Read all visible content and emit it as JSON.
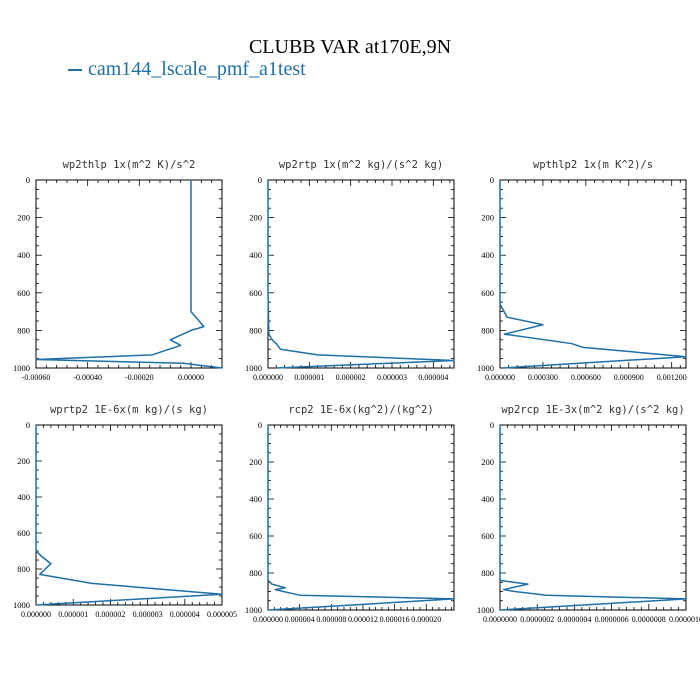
{
  "title": "CLUBB VAR at170E,9N",
  "legend": {
    "label": "cam144_lscale_pmf_a1test",
    "color": "#1f6fa8"
  },
  "chart_data": [
    {
      "type": "line",
      "title": "wp2thlp  1x(m^2 K)/s^2",
      "y_reversed": true,
      "ylim": [
        0,
        1000
      ],
      "yticks": [
        0,
        200,
        400,
        600,
        800,
        1000
      ],
      "xlim": [
        -0.0006,
        0.00012
      ],
      "xticks": [
        -0.0006,
        -0.0004,
        -0.0002,
        0.0
      ],
      "xtick_labels": [
        "-0.00060",
        "-0.00040",
        "-0.00020",
        "0.00000"
      ],
      "series": [
        {
          "color": "#1f6fa8",
          "x": [
            0.0,
            0.0,
            0.0,
            0.0,
            5e-05,
            0.0,
            -8e-05,
            -4e-05,
            -0.00015,
            -0.0006,
            -3e-05,
            0.00012
          ],
          "y": [
            0,
            300,
            600,
            700,
            780,
            800,
            850,
            880,
            930,
            955,
            975,
            1000
          ]
        }
      ]
    },
    {
      "type": "line",
      "title": "wp2rtp  1x(m^2 kg)/(s^2 kg)",
      "y_reversed": true,
      "ylim": [
        0,
        1000
      ],
      "yticks": [
        0,
        200,
        400,
        600,
        800,
        1000
      ],
      "xlim": [
        0.0,
        4.5e-06
      ],
      "xticks": [
        0.0,
        1e-06,
        2e-06,
        3e-06,
        4e-06
      ],
      "xtick_labels": [
        "0.000000",
        "0.000001",
        "0.000002",
        "0.000003",
        "0.000004"
      ],
      "series": [
        {
          "color": "#1f6fa8",
          "x": [
            0.0,
            0.0,
            2e-08,
            1e-07,
            2e-07,
            3e-07,
            1.2e-06,
            4.5e-06,
            2e-07
          ],
          "y": [
            0,
            600,
            820,
            850,
            870,
            900,
            930,
            960,
            1000
          ]
        }
      ]
    },
    {
      "type": "line",
      "title": "wpthlp2  1x(m K^2)/s",
      "y_reversed": true,
      "ylim": [
        0,
        1000
      ],
      "yticks": [
        0,
        200,
        400,
        600,
        800,
        1000
      ],
      "xlim": [
        0.0,
        0.0013
      ],
      "xticks": [
        0.0,
        0.0003,
        0.0006,
        0.0009,
        0.0012
      ],
      "xtick_labels": [
        "0.000000",
        "0.000300",
        "0.000600",
        "0.000900",
        "0.001200"
      ],
      "series": [
        {
          "color": "#1f6fa8",
          "x": [
            0.0,
            0.0,
            5e-05,
            0.0003,
            3e-05,
            0.0005,
            0.00058,
            0.0013,
            2e-05
          ],
          "y": [
            0,
            660,
            730,
            770,
            820,
            870,
            890,
            940,
            1000
          ]
        }
      ]
    },
    {
      "type": "line",
      "title": "wprtp2  1E-6x(m kg)/(s kg)",
      "y_reversed": true,
      "ylim": [
        0,
        1000
      ],
      "yticks": [
        0,
        200,
        400,
        600,
        800,
        1000
      ],
      "xlim": [
        0.0,
        5e-06
      ],
      "xticks": [
        0.0,
        1e-06,
        2e-06,
        3e-06,
        4e-06,
        5e-06
      ],
      "xtick_labels": [
        "0.000000",
        "0.000001",
        "0.000002",
        "0.000003",
        "0.000004",
        "0.000005"
      ],
      "series": [
        {
          "color": "#1f6fa8",
          "x": [
            0.0,
            0.0,
            1.5e-07,
            4e-07,
            1e-07,
            1.5e-06,
            5e-06,
            0.0
          ],
          "y": [
            0,
            700,
            730,
            770,
            830,
            880,
            940,
            1000
          ]
        }
      ]
    },
    {
      "type": "line",
      "title": "rcp2  1E-6x(kg^2)/(kg^2)",
      "y_reversed": true,
      "ylim": [
        0,
        1000
      ],
      "yticks": [
        0,
        200,
        400,
        600,
        800,
        1000
      ],
      "xlim": [
        0.0,
        2.35e-05
      ],
      "xticks": [
        0.0,
        4e-06,
        8e-06,
        1.2e-05,
        1.6e-05,
        2e-05
      ],
      "xtick_labels": [
        "0.000000",
        "0.000004",
        "0.000008",
        "0.000012",
        "0.000016",
        "0.000020"
      ],
      "series": [
        {
          "color": "#1f6fa8",
          "x": [
            0.0,
            0.0,
            5e-07,
            2.2e-06,
            9e-07,
            4e-06,
            2.35e-05,
            0.0
          ],
          "y": [
            0,
            840,
            860,
            880,
            890,
            920,
            940,
            1000
          ]
        }
      ]
    },
    {
      "type": "line",
      "title": "wp2rcp  1E-3x(m^2 kg)/(s^2 kg)",
      "y_reversed": true,
      "ylim": [
        0,
        1000
      ],
      "yticks": [
        0,
        200,
        400,
        600,
        800,
        1000
      ],
      "xlim": [
        0.0,
        1e-06
      ],
      "xticks": [
        0.0,
        2e-07,
        4e-07,
        6e-07,
        8e-07,
        1e-06
      ],
      "xtick_labels": [
        "0.0000000",
        "0.0000002",
        "0.0000004",
        "0.0000006",
        "0.0000008",
        "0.0000010"
      ],
      "series": [
        {
          "color": "#1f6fa8",
          "x": [
            0.0,
            0.0,
            1.5e-07,
            2e-08,
            8e-08,
            2.5e-07,
            1e-06,
            0.0
          ],
          "y": [
            0,
            840,
            860,
            890,
            900,
            920,
            940,
            1000
          ]
        }
      ]
    }
  ]
}
